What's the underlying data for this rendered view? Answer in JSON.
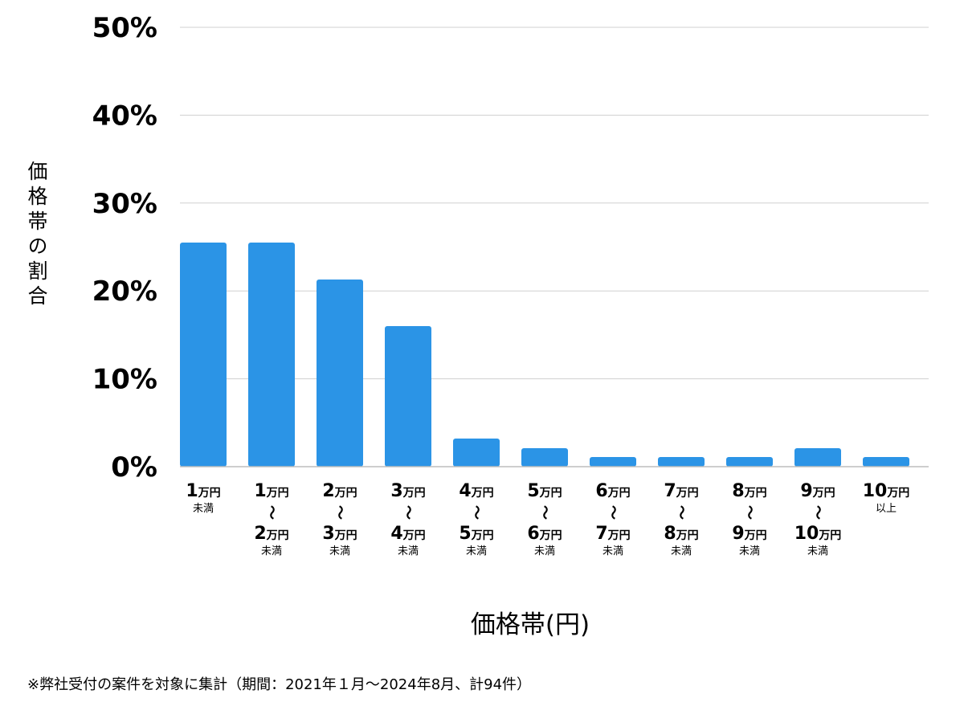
{
  "chart_data": {
    "type": "bar",
    "xlabel": "価格帯(円)",
    "ylabel": "価格帯の割合",
    "ylim": [
      0,
      50
    ],
    "yticks": [
      "0%",
      "10%",
      "20%",
      "30%",
      "40%",
      "50%"
    ],
    "ytick_values": [
      0,
      10,
      20,
      30,
      40,
      50
    ],
    "grid": true,
    "bar_color": "#2b94e6",
    "categories": [
      {
        "from": "1",
        "from_unit": "万円",
        "to": "",
        "to_unit": "",
        "suffix": "未満"
      },
      {
        "from": "1",
        "from_unit": "万円",
        "to": "2",
        "to_unit": "万円",
        "suffix": "未満"
      },
      {
        "from": "2",
        "from_unit": "万円",
        "to": "3",
        "to_unit": "万円",
        "suffix": "未満"
      },
      {
        "from": "3",
        "from_unit": "万円",
        "to": "4",
        "to_unit": "万円",
        "suffix": "未満"
      },
      {
        "from": "4",
        "from_unit": "万円",
        "to": "5",
        "to_unit": "万円",
        "suffix": "未満"
      },
      {
        "from": "5",
        "from_unit": "万円",
        "to": "6",
        "to_unit": "万円",
        "suffix": "未満"
      },
      {
        "from": "6",
        "from_unit": "万円",
        "to": "7",
        "to_unit": "万円",
        "suffix": "未満"
      },
      {
        "from": "7",
        "from_unit": "万円",
        "to": "8",
        "to_unit": "万円",
        "suffix": "未満"
      },
      {
        "from": "8",
        "from_unit": "万円",
        "to": "9",
        "to_unit": "万円",
        "suffix": "未満"
      },
      {
        "from": "9",
        "from_unit": "万円",
        "to": "10",
        "to_unit": "万円",
        "suffix": "未満"
      },
      {
        "from": "10",
        "from_unit": "万円",
        "to": "",
        "to_unit": "",
        "suffix": "以上"
      }
    ],
    "range_mark": "〜",
    "values": [
      25.5,
      25.5,
      21.3,
      16.0,
      3.2,
      2.1,
      1.1,
      1.1,
      1.1,
      2.1,
      1.1
    ]
  },
  "footnote": "※弊社受付の案件を対象に集計（期間：2021年１月〜2024年8月、計94件）"
}
